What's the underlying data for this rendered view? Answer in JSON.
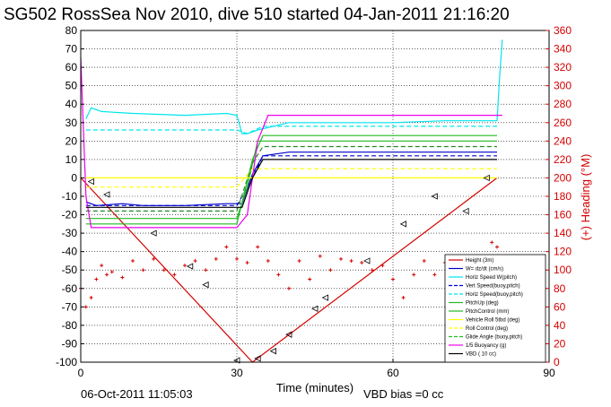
{
  "figure": {
    "title": "SG502 RossSea Nov 2010, dive 510 started 04-Jan-2011 21:16:20",
    "footer_date": "06-Oct-2011 11:05:03",
    "footer_vbd": "VBD bias =0 cc",
    "colors": {
      "height": "#d40000",
      "wdzdt": "#0000cc",
      "horz_speed": "#00e5ee",
      "pitch": "#22bb22",
      "roll": "#ffff00",
      "glide": "#228b22",
      "buoyancy": "#ee00ee",
      "vbd": "#000000",
      "right_axis": "#d40000"
    }
  },
  "chart_data": {
    "type": "line",
    "title": "SG502 RossSea Nov 2010, dive 510 started 04-Jan-2011 21:16:20",
    "xlabel": "Time (minutes)",
    "ylabel": "",
    "y2label": "(+) Heading (°M)",
    "xlim": [
      0,
      90
    ],
    "ylim": [
      -100,
      80
    ],
    "y2lim": [
      0,
      360
    ],
    "xticks": [
      0,
      30,
      60,
      90
    ],
    "yticks": [
      -100,
      -90,
      -80,
      -70,
      -60,
      -50,
      -40,
      -30,
      -20,
      -10,
      0,
      10,
      20,
      30,
      40,
      50,
      60,
      70,
      80
    ],
    "y2ticks": [
      0,
      20,
      40,
      60,
      80,
      100,
      120,
      140,
      160,
      180,
      200,
      220,
      240,
      260,
      280,
      300,
      320,
      340,
      360
    ],
    "grid": true,
    "legend_position": "bottom-right",
    "series": [
      {
        "name": "Height (3m)",
        "key": "height",
        "points": [
          [
            0,
            0
          ],
          [
            33,
            -100
          ],
          [
            80,
            0
          ]
        ]
      },
      {
        "name": "W= dz/dt (cm/s)",
        "key": "wdzdt",
        "points": [
          [
            1,
            -13
          ],
          [
            3,
            -15
          ],
          [
            8,
            -14
          ],
          [
            12,
            -15
          ],
          [
            20,
            -15
          ],
          [
            28,
            -14
          ],
          [
            31,
            -14
          ],
          [
            33,
            2
          ],
          [
            35,
            12
          ],
          [
            40,
            14
          ],
          [
            50,
            14
          ],
          [
            60,
            14
          ],
          [
            70,
            14
          ],
          [
            80,
            14
          ]
        ]
      },
      {
        "name": "Horiz Speed W(pitch)",
        "key": "hspeed",
        "points": [
          [
            1,
            32
          ],
          [
            2,
            38
          ],
          [
            4,
            36
          ],
          [
            10,
            35
          ],
          [
            20,
            34
          ],
          [
            28,
            35
          ],
          [
            30,
            34
          ],
          [
            31,
            24
          ],
          [
            32,
            24
          ],
          [
            34,
            26
          ],
          [
            40,
            30
          ],
          [
            50,
            30
          ],
          [
            60,
            30
          ],
          [
            70,
            31
          ],
          [
            80,
            31
          ],
          [
            80.5,
            55
          ],
          [
            81,
            75
          ]
        ]
      },
      {
        "name": "Vert Speed(buoy,pitch)",
        "key": "vspeed",
        "points": [
          [
            1,
            -15
          ],
          [
            30,
            -15
          ],
          [
            33,
            0
          ],
          [
            35,
            12
          ],
          [
            80,
            12
          ]
        ]
      },
      {
        "name": "Horiz Speed(buoy,pitch)",
        "key": "hspeedb",
        "points": [
          [
            1,
            26
          ],
          [
            30,
            26
          ],
          [
            32,
            24
          ],
          [
            35,
            28
          ],
          [
            80,
            28
          ]
        ]
      },
      {
        "name": "PitchUp (deg)",
        "key": "pitchup",
        "points": [
          [
            1,
            -25
          ],
          [
            30,
            -25
          ],
          [
            33,
            10
          ],
          [
            35,
            23
          ],
          [
            80,
            23
          ]
        ]
      },
      {
        "name": "PitchControl (mm)",
        "key": "pitchctl",
        "points": [
          [
            1,
            -22
          ],
          [
            30,
            -22
          ],
          [
            32,
            -5
          ],
          [
            34,
            20
          ],
          [
            80,
            20
          ]
        ]
      },
      {
        "name": "Vehicle Roll 5tbd (deg)",
        "key": "roll",
        "points": [
          [
            1,
            0
          ],
          [
            10,
            0
          ],
          [
            20,
            0
          ],
          [
            30,
            0
          ],
          [
            34,
            0
          ],
          [
            50,
            0
          ],
          [
            80,
            0
          ]
        ]
      },
      {
        "name": "Roll Control (deg)",
        "key": "rollctl",
        "points": [
          [
            1,
            -5
          ],
          [
            30,
            -5
          ],
          [
            33,
            5
          ],
          [
            80,
            5
          ]
        ]
      },
      {
        "name": "Glide Angle (buoy,pitch)",
        "key": "glide",
        "points": [
          [
            1,
            -18
          ],
          [
            30,
            -18
          ],
          [
            33,
            8
          ],
          [
            35,
            17
          ],
          [
            80,
            17
          ]
        ]
      },
      {
        "name": "1/5 Buoyancy (g)",
        "key": "buoyancy",
        "points": [
          [
            0,
            65
          ],
          [
            1,
            -10
          ],
          [
            2,
            -27
          ],
          [
            10,
            -27
          ],
          [
            30,
            -27
          ],
          [
            32,
            -20
          ],
          [
            34,
            20
          ],
          [
            36,
            34
          ],
          [
            80,
            34
          ],
          [
            81,
            34
          ]
        ]
      },
      {
        "name": "VBD ( 10 cc)",
        "key": "vbd",
        "points": [
          [
            1,
            -16
          ],
          [
            31,
            -16
          ],
          [
            33,
            0
          ],
          [
            35,
            10
          ],
          [
            80,
            10
          ]
        ]
      }
    ],
    "heading_series": {
      "name": "Heading",
      "axis": "right",
      "points": [
        [
          0,
          80
        ],
        [
          1,
          60
        ],
        [
          2,
          70
        ],
        [
          3,
          90
        ],
        [
          4,
          105
        ],
        [
          5,
          95
        ],
        [
          6,
          98
        ],
        [
          8,
          92
        ],
        [
          10,
          110
        ],
        [
          12,
          100
        ],
        [
          14,
          112
        ],
        [
          16,
          100
        ],
        [
          18,
          95
        ],
        [
          20,
          105
        ],
        [
          22,
          110
        ],
        [
          24,
          100
        ],
        [
          26,
          112
        ],
        [
          28,
          125
        ],
        [
          30,
          112
        ],
        [
          32,
          108
        ],
        [
          34,
          125
        ],
        [
          36,
          110
        ],
        [
          38,
          95
        ],
        [
          40,
          80
        ],
        [
          42,
          110
        ],
        [
          44,
          90
        ],
        [
          46,
          115
        ],
        [
          48,
          100
        ],
        [
          50,
          112
        ],
        [
          52,
          110
        ],
        [
          54,
          108
        ],
        [
          56,
          100
        ],
        [
          58,
          105
        ],
        [
          60,
          90
        ],
        [
          62,
          70
        ],
        [
          64,
          95
        ],
        [
          66,
          110
        ],
        [
          68,
          95
        ],
        [
          70,
          108
        ],
        [
          72,
          90
        ],
        [
          74,
          85
        ],
        [
          76,
          95
        ],
        [
          78,
          100
        ],
        [
          79,
          130
        ],
        [
          80,
          125
        ]
      ]
    },
    "markers": {
      "name": "VBD markers",
      "points": [
        [
          2,
          -2
        ],
        [
          5,
          -9
        ],
        [
          14,
          -30
        ],
        [
          21,
          -48
        ],
        [
          24,
          -58
        ],
        [
          34,
          -98
        ],
        [
          37,
          -94
        ],
        [
          40,
          -85
        ],
        [
          45,
          -71
        ],
        [
          47,
          -65
        ],
        [
          55,
          -45
        ],
        [
          62,
          -25
        ],
        [
          68,
          -10
        ],
        [
          78,
          0
        ],
        [
          30,
          -99
        ],
        [
          74,
          -18
        ]
      ]
    }
  },
  "legend": {
    "items": [
      {
        "label": "Height (3m)",
        "color": "#d40000",
        "dash": ""
      },
      {
        "label": "W= dz/dt (cm/s)",
        "color": "#0000cc",
        "dash": ""
      },
      {
        "label": "Horiz Speed W(pitch)",
        "color": "#00e5ee",
        "dash": ""
      },
      {
        "label": "Vert Speed(buoy,pitch)",
        "color": "#0000cc",
        "dash": "4,2"
      },
      {
        "label": "Horiz Speed(buoy,pitch)",
        "color": "#00e5ee",
        "dash": "4,2"
      },
      {
        "label": "PitchUp (deg)",
        "color": "#22bb22",
        "dash": ""
      },
      {
        "label": "PitchControl (mm)",
        "color": "#22bb22",
        "dash": ""
      },
      {
        "label": "Vehicle Roll 5tbd (deg)",
        "color": "#ffff00",
        "dash": ""
      },
      {
        "label": "Roll Control (deg)",
        "color": "#ffff00",
        "dash": "4,2"
      },
      {
        "label": "Glide Angle (buoy,pitch)",
        "color": "#22bb22",
        "dash": "4,2"
      },
      {
        "label": "1/5 Buoyancy (g)",
        "color": "#ee00ee",
        "dash": ""
      },
      {
        "label": "VBD ( 10 cc)",
        "color": "#000000",
        "dash": ""
      }
    ]
  }
}
